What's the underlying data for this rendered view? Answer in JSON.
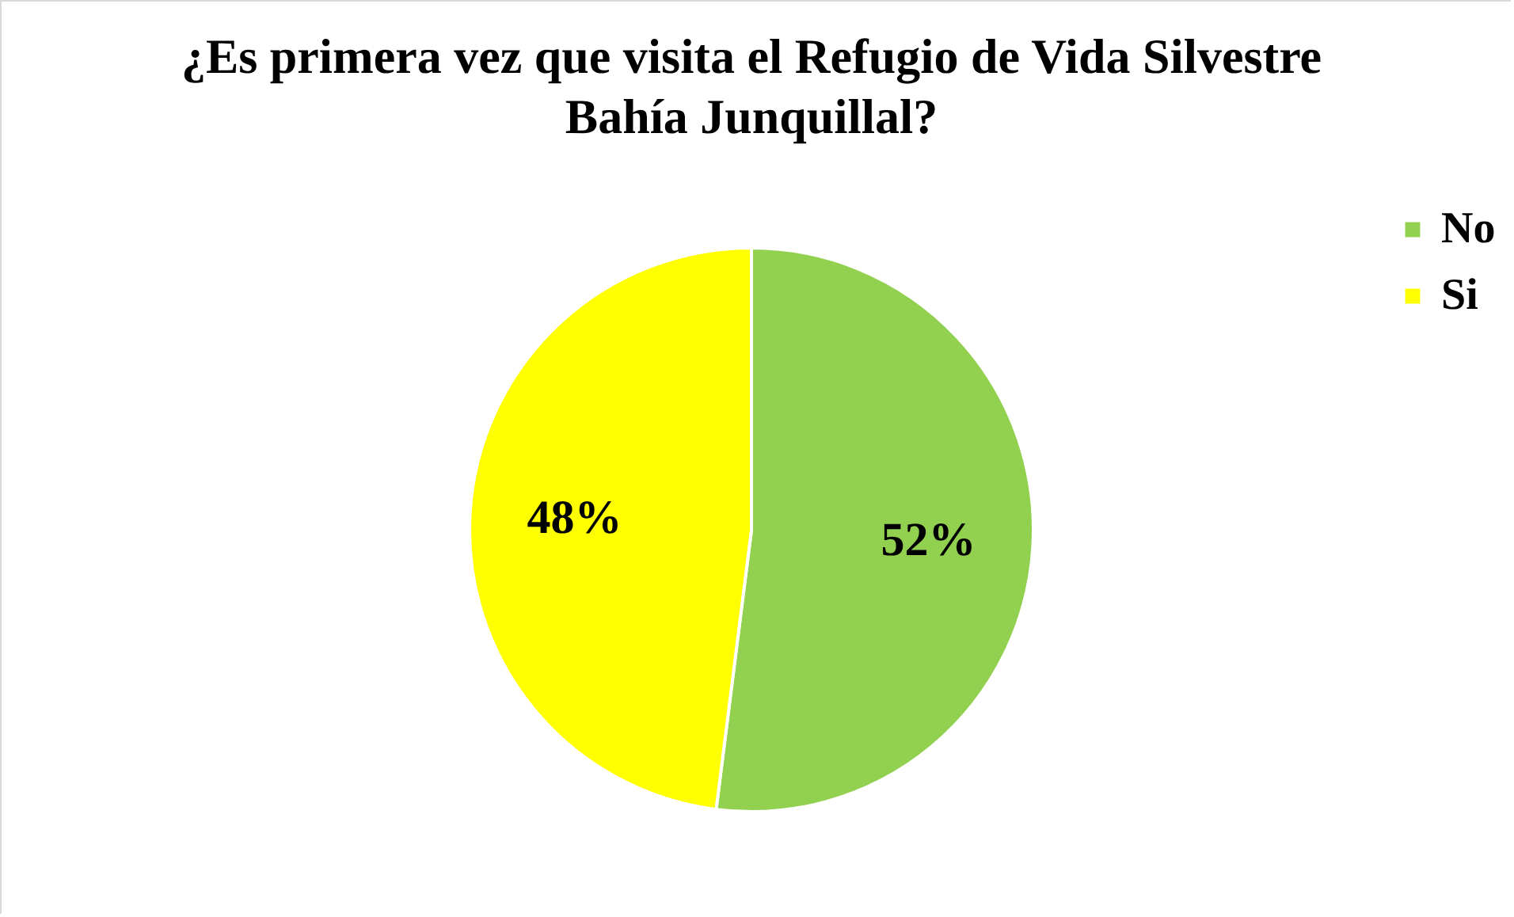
{
  "chart_data": {
    "type": "pie",
    "title": "¿Es primera vez que visita el Refugio de Vida Silvestre Bahía Junquillal?",
    "categories": [
      "No",
      "Si"
    ],
    "values": [
      52,
      48
    ],
    "colors": [
      "#92d050",
      "#ffff00"
    ],
    "value_labels": [
      "52%",
      "48%"
    ],
    "legend": "right"
  }
}
